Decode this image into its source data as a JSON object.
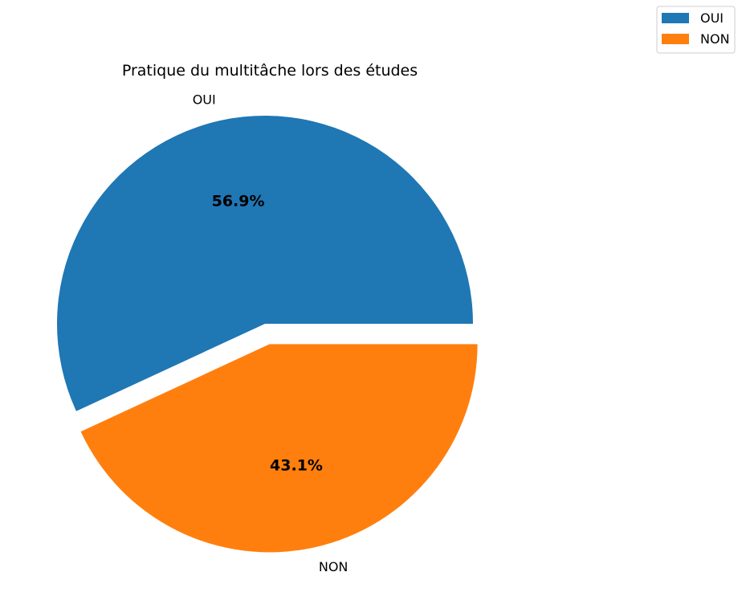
{
  "chart_data": {
    "type": "pie",
    "title": "Pratique du multitâche lors des études",
    "categories": [
      "OUI",
      "NON"
    ],
    "values": [
      56.9,
      43.1
    ],
    "value_labels": [
      "56.9%",
      "43.1%"
    ],
    "colors": [
      "#1f77b4",
      "#ff7f0e"
    ],
    "exploded": [
      false,
      true
    ],
    "start": "right",
    "direction": "counterclockwise",
    "legend": {
      "position": "top-right",
      "entries": [
        "OUI",
        "NON"
      ]
    }
  }
}
